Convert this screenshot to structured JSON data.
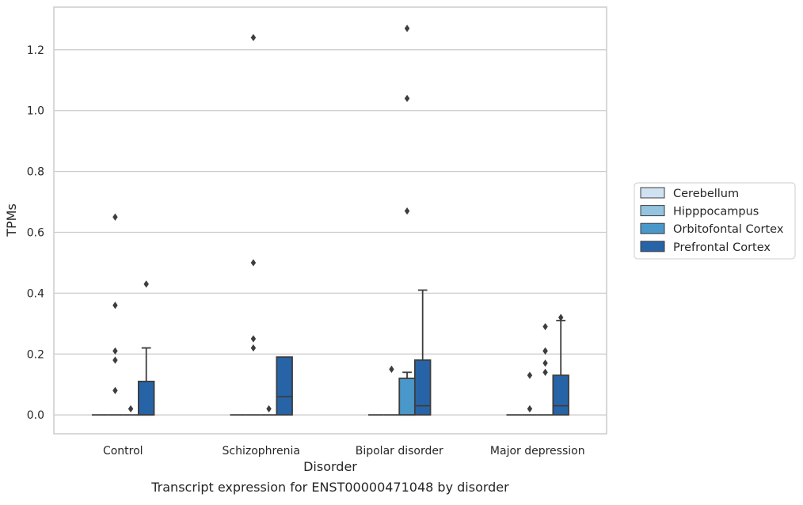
{
  "caption": "Transcript expression for ENST00000471048 by disorder",
  "chart_data": {
    "type": "box",
    "xlabel": "Disorder",
    "ylabel": "TPMs",
    "ylim": [
      -0.062,
      1.34
    ],
    "yticks": [
      0.0,
      0.2,
      0.4,
      0.6,
      0.8,
      1.0,
      1.2
    ],
    "ytick_labels": [
      "0.0",
      "0.2",
      "0.4",
      "0.6",
      "0.8",
      "1.0",
      "1.2"
    ],
    "grid": "horizontal",
    "legend_position": "right",
    "categories": [
      "Control",
      "Schizophrenia",
      "Bipolar disorder",
      "Major depression"
    ],
    "series": [
      {
        "name": "Cerebellum",
        "color": "#d0e1f2",
        "boxes": [
          {
            "q1": 0,
            "median": 0,
            "q3": 0,
            "whisker_low": 0,
            "whisker_high": 0,
            "outliers": []
          },
          {
            "q1": 0,
            "median": 0,
            "q3": 0,
            "whisker_low": 0,
            "whisker_high": 0,
            "outliers": []
          },
          {
            "q1": 0,
            "median": 0,
            "q3": 0,
            "whisker_low": 0,
            "whisker_high": 0,
            "outliers": []
          },
          {
            "q1": 0,
            "median": 0,
            "q3": 0,
            "whisker_low": 0,
            "whisker_high": 0,
            "outliers": []
          }
        ]
      },
      {
        "name": "Hipppocampus",
        "color": "#94c4df",
        "boxes": [
          {
            "q1": 0,
            "median": 0,
            "q3": 0,
            "whisker_low": 0,
            "whisker_high": 0,
            "outliers": [
              0.65,
              0.36,
              0.21,
              0.18,
              0.08
            ]
          },
          {
            "q1": 0,
            "median": 0,
            "q3": 0,
            "whisker_low": 0,
            "whisker_high": 0,
            "outliers": [
              1.24,
              0.5,
              0.25,
              0.22
            ]
          },
          {
            "q1": 0,
            "median": 0,
            "q3": 0,
            "whisker_low": 0,
            "whisker_high": 0,
            "outliers": [
              0.15
            ]
          },
          {
            "q1": 0,
            "median": 0,
            "q3": 0,
            "whisker_low": 0,
            "whisker_high": 0,
            "outliers": [
              0.13,
              0.02
            ]
          }
        ]
      },
      {
        "name": "Orbitofontal Cortex",
        "color": "#4a98c9",
        "boxes": [
          {
            "q1": 0,
            "median": 0,
            "q3": 0,
            "whisker_low": 0,
            "whisker_high": 0,
            "outliers": [
              0.02
            ]
          },
          {
            "q1": 0,
            "median": 0,
            "q3": 0,
            "whisker_low": 0,
            "whisker_high": 0,
            "outliers": [
              0.02
            ]
          },
          {
            "q1": 0,
            "median": 0,
            "q3": 0.12,
            "whisker_low": 0,
            "whisker_high": 0.14,
            "outliers": [
              1.27,
              1.04,
              0.67
            ]
          },
          {
            "q1": 0,
            "median": 0,
            "q3": 0,
            "whisker_low": 0,
            "whisker_high": 0,
            "outliers": [
              0.29,
              0.21,
              0.17,
              0.21,
              0.14
            ]
          }
        ]
      },
      {
        "name": "Prefrontal Cortex",
        "color": "#2764a7",
        "boxes": [
          {
            "q1": 0,
            "median": 0,
            "q3": 0.11,
            "whisker_low": 0,
            "whisker_high": 0.22,
            "outliers": [
              0.43
            ]
          },
          {
            "q1": 0,
            "median": 0.06,
            "q3": 0.19,
            "whisker_low": 0,
            "whisker_high": 0.19,
            "outliers": []
          },
          {
            "q1": 0,
            "median": 0.03,
            "q3": 0.18,
            "whisker_low": 0,
            "whisker_high": 0.41,
            "outliers": []
          },
          {
            "q1": 0,
            "median": 0.03,
            "q3": 0.13,
            "whisker_low": 0,
            "whisker_high": 0.31,
            "outliers": [
              0.32
            ]
          }
        ]
      }
    ]
  }
}
